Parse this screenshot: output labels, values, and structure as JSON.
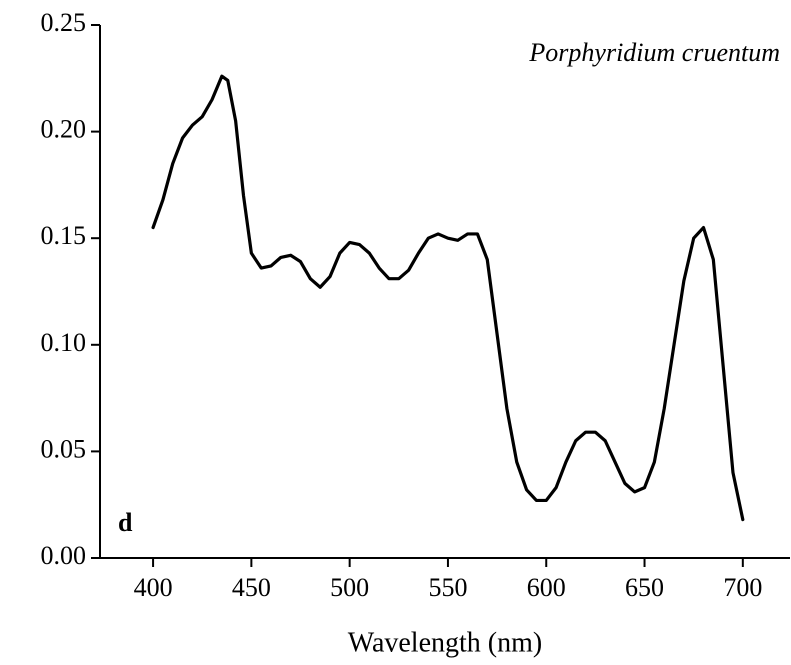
{
  "chart_data": {
    "type": "line",
    "annotations": [
      "Porphyridium cruentum",
      "d"
    ],
    "xlabel": "Wavelength (nm)",
    "x": [
      400,
      405,
      410,
      415,
      420,
      425,
      430,
      435,
      438,
      442,
      446,
      450,
      455,
      460,
      465,
      470,
      475,
      480,
      485,
      490,
      495,
      500,
      505,
      510,
      515,
      520,
      525,
      530,
      535,
      540,
      545,
      550,
      555,
      560,
      565,
      570,
      575,
      580,
      585,
      590,
      595,
      600,
      605,
      610,
      615,
      620,
      625,
      630,
      635,
      640,
      645,
      650,
      655,
      660,
      665,
      670,
      675,
      680,
      685,
      690,
      695,
      700
    ],
    "series": [
      {
        "color": "#000000",
        "values": [
          0.155,
          0.168,
          0.185,
          0.197,
          0.203,
          0.207,
          0.215,
          0.226,
          0.224,
          0.205,
          0.17,
          0.143,
          0.136,
          0.137,
          0.141,
          0.142,
          0.139,
          0.131,
          0.127,
          0.132,
          0.143,
          0.148,
          0.147,
          0.143,
          0.136,
          0.131,
          0.131,
          0.135,
          0.143,
          0.15,
          0.152,
          0.15,
          0.149,
          0.152,
          0.152,
          0.14,
          0.105,
          0.07,
          0.045,
          0.032,
          0.027,
          0.027,
          0.033,
          0.045,
          0.055,
          0.059,
          0.059,
          0.055,
          0.045,
          0.035,
          0.031,
          0.033,
          0.045,
          0.07,
          0.1,
          0.13,
          0.15,
          0.155,
          0.14,
          0.09,
          0.04,
          0.018
        ]
      }
    ],
    "xlim": [
      373,
      724
    ],
    "ylim": [
      0,
      0.25
    ],
    "xticks": [
      400,
      450,
      500,
      550,
      600,
      650,
      700
    ],
    "yticks": [
      {
        "value": 0,
        "label": "0.00"
      },
      0.05,
      {
        "value": 0.1,
        "label": "0.10"
      },
      0.15,
      {
        "value": 0.2,
        "label": "0.20"
      },
      0.25
    ]
  }
}
